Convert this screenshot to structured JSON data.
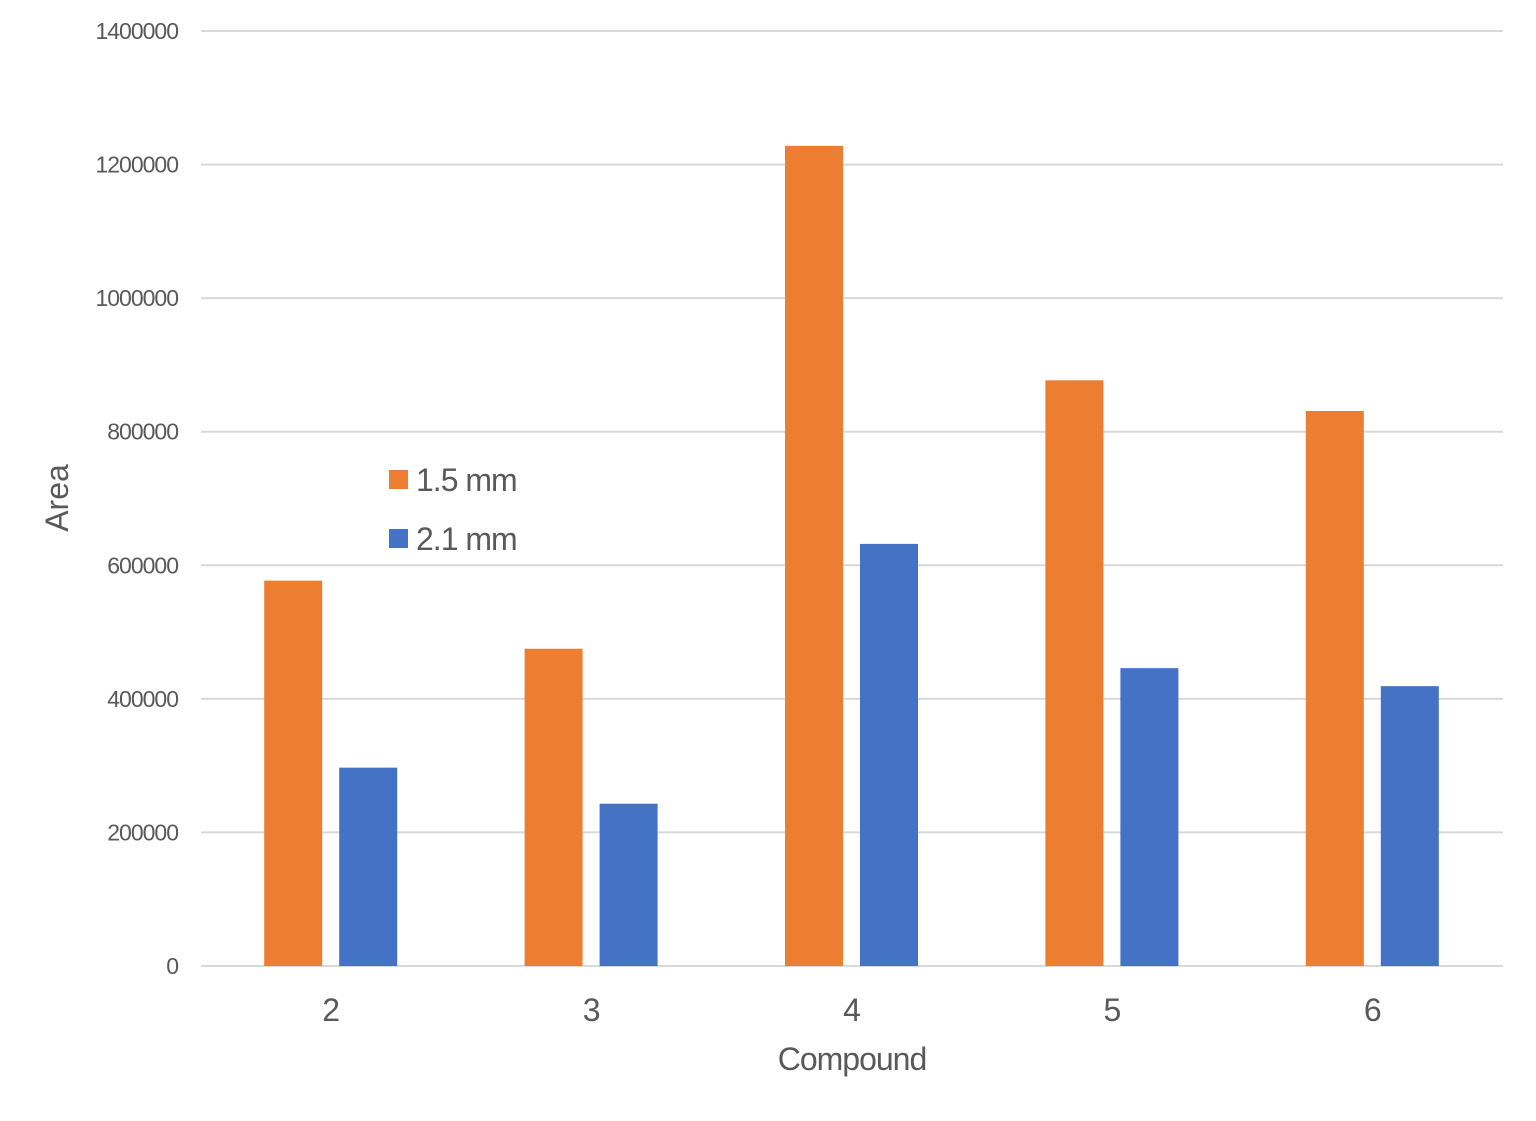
{
  "chart_data": {
    "type": "bar",
    "title": "",
    "xlabel": "Compound",
    "ylabel": "Area",
    "categories": [
      "2",
      "3",
      "4",
      "5",
      "6"
    ],
    "series": [
      {
        "name": "1.5 mm",
        "color": "#ED7D31",
        "values": [
          577000,
          475000,
          1228000,
          877000,
          831000
        ]
      },
      {
        "name": "2.1 mm",
        "color": "#4472C4",
        "values": [
          297000,
          243000,
          632000,
          446000,
          419000
        ]
      }
    ],
    "ylim": [
      0,
      1400000
    ],
    "yticks": [
      "0",
      "200000",
      "400000",
      "600000",
      "800000",
      "1000000",
      "1200000",
      "1400000"
    ],
    "grid": true,
    "gridline_color": "#D9D9D9",
    "legend_position": "inside-left"
  }
}
